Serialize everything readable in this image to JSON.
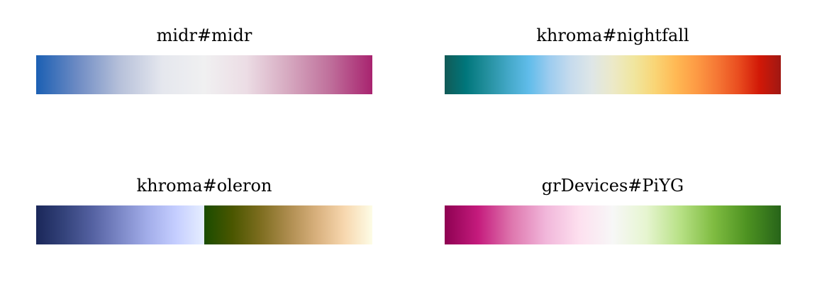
{
  "chart_data": [
    {
      "type": "colorbar",
      "title": "midr#midr",
      "gradient": "continuous",
      "colors": [
        "#1b5fb3",
        "#6f8cc4",
        "#b7c1da",
        "#e5e7ee",
        "#f0f0f1",
        "#ecdde5",
        "#d6a9c0",
        "#bf6f9b",
        "#a8236f"
      ]
    },
    {
      "type": "colorbar",
      "title": "khroma#nightfall",
      "gradient": "continuous",
      "colors": [
        "#125a56",
        "#00767b",
        "#238f9d",
        "#42a7c6",
        "#60bcea",
        "#9dccef",
        "#c6dbed",
        "#dee6e7",
        "#ece9c8",
        "#f0e69f",
        "#f9d576",
        "#ffb954",
        "#fd9a44",
        "#f57634",
        "#e94c1f",
        "#d11807",
        "#a01813"
      ]
    },
    {
      "type": "colorbar",
      "title": "khroma#oleron",
      "gradient": "diverging-split",
      "colors": [
        "#1a2759",
        "#34437b",
        "#5461a1",
        "#7c88c7",
        "#a3aeea",
        "#c5ceff",
        "#e6eeff",
        "#1a4c00",
        "#4a5600",
        "#7d6d1f",
        "#ad8c4e",
        "#d8b07d",
        "#f7d7ae",
        "#fdfce6"
      ]
    },
    {
      "type": "colorbar",
      "title": "grDevices#PiYG",
      "gradient": "continuous",
      "colors": [
        "#8e0152",
        "#c51b7d",
        "#de77ae",
        "#f1b6da",
        "#fde0ef",
        "#f7f7f7",
        "#e6f5d0",
        "#b8e186",
        "#7fbc41",
        "#4d9221",
        "#276419"
      ]
    }
  ]
}
